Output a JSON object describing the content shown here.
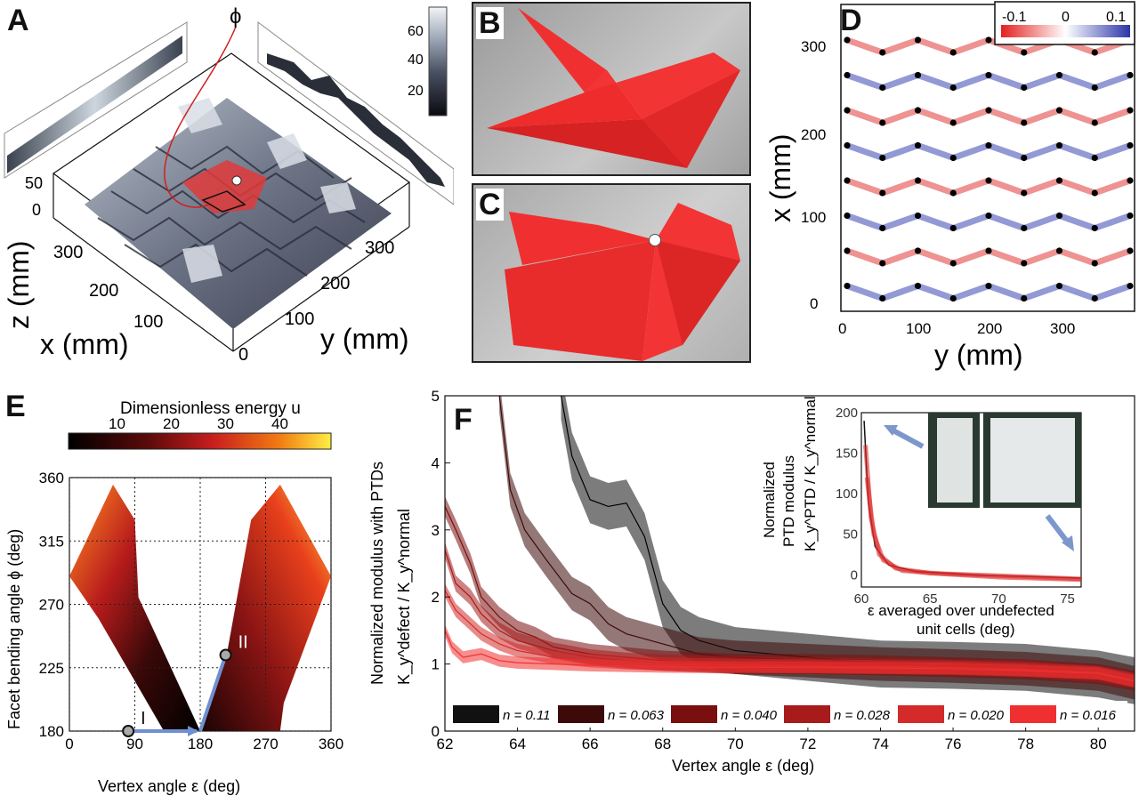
{
  "panels": {
    "A": "A",
    "B": "B",
    "C": "C",
    "D": "D",
    "E": "E",
    "F": "F"
  },
  "panel_a": {
    "phi": "ϕ",
    "colorbar_ticks": [
      "60",
      "40",
      "20"
    ],
    "z_ticks": [
      "50",
      "0"
    ],
    "x_ticks": [
      "300",
      "200",
      "100"
    ],
    "y_ticks": [
      "0",
      "100",
      "200",
      "300"
    ],
    "z_label": "z (mm)",
    "x_label": "x (mm)",
    "y_label": "y (mm)"
  },
  "panel_d": {
    "legend_ticks": [
      "-0.1",
      "0",
      "0.1"
    ],
    "x_ticks": [
      "0",
      "100",
      "200",
      "300"
    ],
    "y_ticks": [
      "300",
      "200",
      "100",
      "0"
    ],
    "xlabel": "y (mm)",
    "ylabel": "x (mm)"
  },
  "chart_data": [
    {
      "id": "E",
      "type": "heatmap",
      "title": "Dimensionless energy  u",
      "colorbar_ticks": [
        "10",
        "20",
        "30",
        "40"
      ],
      "xlabel": "Vertex angle  ε (deg)",
      "ylabel": "Facet bending angle  ϕ (deg)",
      "xlim": [
        0,
        360
      ],
      "ylim": [
        180,
        360
      ],
      "xticks": [
        0,
        90,
        180,
        270,
        360
      ],
      "yticks": [
        180,
        225,
        270,
        315,
        360
      ],
      "grid": true,
      "markers": [
        {
          "label": "I",
          "x": 81,
          "y": 180
        },
        {
          "label": "II",
          "x": 215,
          "y": 234
        }
      ]
    },
    {
      "id": "F",
      "type": "line",
      "xlabel": "Vertex angle  ε (deg)",
      "ylabel_line1": "Normalized modulus with PTDs",
      "ylabel_line2": "K_y^defect / K_y^normal",
      "xlim": [
        62,
        81
      ],
      "ylim": [
        0,
        5
      ],
      "xticks": [
        62,
        64,
        66,
        68,
        70,
        72,
        74,
        76,
        78,
        80
      ],
      "yticks": [
        0,
        1,
        2,
        3,
        4,
        5
      ],
      "legend_position": "bottom",
      "series": [
        {
          "name": "n = 0.11",
          "color": "#111111",
          "x": [
            65.2,
            65.5,
            66,
            66.5,
            67,
            67.5,
            68,
            68.5,
            69,
            70,
            71,
            72,
            74,
            76,
            78,
            80,
            81
          ],
          "y": [
            5,
            4.1,
            3.45,
            3.35,
            3.4,
            2.9,
            1.9,
            1.5,
            1.35,
            1.2,
            1.15,
            1.1,
            1.0,
            0.98,
            0.95,
            0.85,
            0.75
          ]
        },
        {
          "name": "n = 0.063",
          "color": "#3d0a0a",
          "x": [
            63.5,
            63.8,
            64.2,
            64.8,
            65.5,
            66,
            66.5,
            67,
            68,
            69,
            70,
            72,
            74,
            76,
            78,
            80,
            81
          ],
          "y": [
            5,
            3.6,
            3.0,
            2.55,
            2.05,
            1.9,
            1.6,
            1.45,
            1.3,
            1.15,
            1.1,
            1.05,
            1.0,
            0.97,
            0.93,
            0.85,
            0.72
          ]
        },
        {
          "name": "n = 0.040",
          "color": "#7a0f0f",
          "x": [
            62,
            62.3,
            62.7,
            63,
            63.5,
            64,
            64.5,
            65,
            66,
            67,
            68,
            70,
            72,
            74,
            76,
            78,
            80,
            81
          ],
          "y": [
            3.35,
            3.0,
            2.5,
            2.0,
            1.7,
            1.5,
            1.4,
            1.25,
            1.15,
            1.1,
            1.05,
            1.0,
            1.0,
            0.98,
            0.95,
            0.92,
            0.85,
            0.75
          ]
        },
        {
          "name": "n = 0.028",
          "color": "#a81b1b",
          "x": [
            62,
            62.3,
            62.7,
            63,
            63.5,
            64,
            65,
            66,
            67,
            68,
            70,
            72,
            74,
            76,
            78,
            80,
            81
          ],
          "y": [
            2.7,
            2.2,
            2.0,
            1.75,
            1.5,
            1.35,
            1.2,
            1.1,
            1.05,
            1.02,
            1.0,
            0.98,
            0.97,
            0.95,
            0.93,
            0.85,
            0.75
          ]
        },
        {
          "name": "n = 0.020",
          "color": "#d42a2a",
          "x": [
            62,
            62.3,
            62.7,
            63,
            63.5,
            64,
            65,
            66,
            67,
            68,
            70,
            72,
            74,
            76,
            78,
            80,
            81
          ],
          "y": [
            2.1,
            1.8,
            1.6,
            1.45,
            1.3,
            1.2,
            1.1,
            1.05,
            1.02,
            1.0,
            0.98,
            0.97,
            0.96,
            0.95,
            0.92,
            0.87,
            0.76
          ]
        },
        {
          "name": "n = 0.016",
          "color": "#f03030",
          "x": [
            62,
            62.2,
            62.5,
            63,
            63.5,
            64,
            65,
            66,
            67,
            68,
            70,
            72,
            74,
            76,
            78,
            80,
            81
          ],
          "y": [
            1.5,
            1.25,
            1.1,
            1.15,
            1.05,
            1.02,
            1.0,
            0.98,
            0.97,
            0.96,
            0.95,
            0.95,
            0.94,
            0.93,
            0.9,
            0.86,
            0.74
          ]
        }
      ],
      "inset": {
        "xlabel_line1": "ε averaged over undefected",
        "xlabel_line2": "unit cells (deg)",
        "ylabel_line1": "Normalized",
        "ylabel_line2": "PTD modulus",
        "ylabel_line3": "K_y^PTD / K_y^normal",
        "xlim": [
          60,
          76
        ],
        "ylim": [
          -15,
          200
        ],
        "xticks": [
          60,
          65,
          70,
          75
        ],
        "yticks": [
          0,
          50,
          100,
          150,
          200
        ]
      }
    }
  ]
}
